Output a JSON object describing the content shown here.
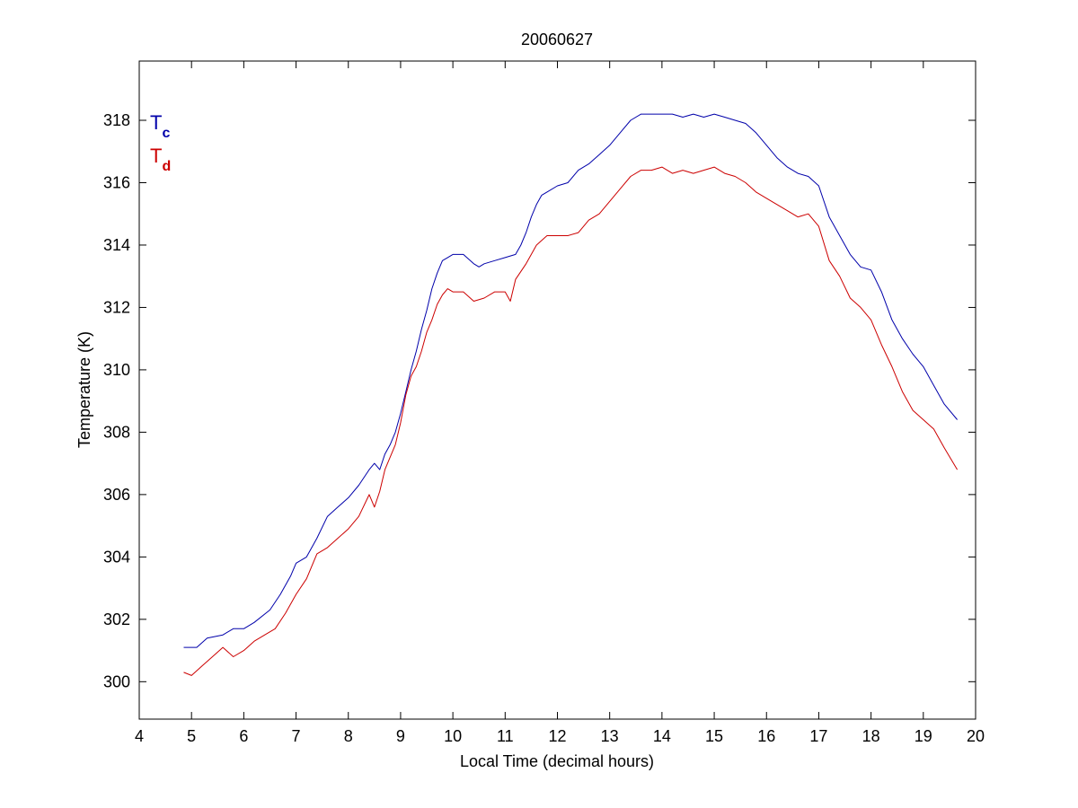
{
  "chart_data": {
    "type": "line",
    "title": "20060627",
    "xlabel": "Local Time (decimal hours)",
    "ylabel": "Temperature (K)",
    "xlim": [
      4,
      20
    ],
    "ylim": [
      298.8,
      319.9
    ],
    "xticks": [
      4,
      5,
      6,
      7,
      8,
      9,
      10,
      11,
      12,
      13,
      14,
      15,
      16,
      17,
      18,
      19,
      20
    ],
    "yticks": [
      300,
      302,
      304,
      306,
      308,
      310,
      312,
      314,
      316,
      318
    ],
    "grid": false,
    "legend": {
      "placement": "top-left"
    },
    "series": [
      {
        "name": "T",
        "subscript": "c",
        "color": "#0000aa",
        "x": [
          4.85,
          5.1,
          5.3,
          5.6,
          5.8,
          6.0,
          6.2,
          6.5,
          6.7,
          6.9,
          7.0,
          7.2,
          7.4,
          7.6,
          7.8,
          8.0,
          8.2,
          8.4,
          8.5,
          8.6,
          8.7,
          8.8,
          8.9,
          9.0,
          9.1,
          9.2,
          9.3,
          9.4,
          9.5,
          9.6,
          9.7,
          9.8,
          9.9,
          10.0,
          10.2,
          10.4,
          10.5,
          10.6,
          10.8,
          11.0,
          11.2,
          11.3,
          11.4,
          11.5,
          11.6,
          11.7,
          11.8,
          12.0,
          12.2,
          12.4,
          12.6,
          12.8,
          13.0,
          13.2,
          13.4,
          13.6,
          13.8,
          14.0,
          14.2,
          14.4,
          14.6,
          14.8,
          15.0,
          15.2,
          15.4,
          15.6,
          15.8,
          16.0,
          16.2,
          16.4,
          16.6,
          16.8,
          17.0,
          17.2,
          17.4,
          17.6,
          17.8,
          18.0,
          18.2,
          18.4,
          18.6,
          18.8,
          19.0,
          19.2,
          19.4,
          19.65
        ],
        "y": [
          301.1,
          301.1,
          301.4,
          301.5,
          301.7,
          301.7,
          301.9,
          302.3,
          302.8,
          303.4,
          303.8,
          304.0,
          304.6,
          305.3,
          305.6,
          305.9,
          306.3,
          306.8,
          307.0,
          306.8,
          307.3,
          307.6,
          308.0,
          308.6,
          309.3,
          310.0,
          310.6,
          311.3,
          311.9,
          312.6,
          313.1,
          313.5,
          313.6,
          313.7,
          313.7,
          313.4,
          313.3,
          313.4,
          313.5,
          313.6,
          313.7,
          314.0,
          314.4,
          314.9,
          315.3,
          315.6,
          315.7,
          315.9,
          316.0,
          316.4,
          316.6,
          316.9,
          317.2,
          317.6,
          318.0,
          318.2,
          318.2,
          318.2,
          318.2,
          318.1,
          318.2,
          318.1,
          318.2,
          318.1,
          318.0,
          317.9,
          317.6,
          317.2,
          316.8,
          316.5,
          316.3,
          316.2,
          315.9,
          314.9,
          314.3,
          313.7,
          313.3,
          313.2,
          312.5,
          311.6,
          311.0,
          310.5,
          310.1,
          309.5,
          308.9,
          308.4
        ]
      },
      {
        "name": "T",
        "subscript": "d",
        "color": "#cc0000",
        "x": [
          4.85,
          5.0,
          5.2,
          5.4,
          5.6,
          5.8,
          6.0,
          6.2,
          6.4,
          6.6,
          6.8,
          7.0,
          7.2,
          7.4,
          7.6,
          7.8,
          8.0,
          8.2,
          8.4,
          8.5,
          8.6,
          8.7,
          8.8,
          8.9,
          9.0,
          9.1,
          9.2,
          9.3,
          9.4,
          9.5,
          9.6,
          9.7,
          9.8,
          9.9,
          10.0,
          10.2,
          10.4,
          10.6,
          10.8,
          11.0,
          11.1,
          11.2,
          11.4,
          11.6,
          11.8,
          12.0,
          12.2,
          12.4,
          12.6,
          12.8,
          13.0,
          13.2,
          13.4,
          13.6,
          13.8,
          14.0,
          14.2,
          14.4,
          14.6,
          14.8,
          15.0,
          15.2,
          15.4,
          15.6,
          15.8,
          16.0,
          16.2,
          16.4,
          16.6,
          16.8,
          17.0,
          17.2,
          17.4,
          17.6,
          17.8,
          18.0,
          18.2,
          18.4,
          18.6,
          18.8,
          19.0,
          19.2,
          19.4,
          19.65
        ],
        "y": [
          300.3,
          300.2,
          300.5,
          300.8,
          301.1,
          300.8,
          301.0,
          301.3,
          301.5,
          301.7,
          302.2,
          302.8,
          303.3,
          304.1,
          304.3,
          304.6,
          304.9,
          305.3,
          306.0,
          305.6,
          306.1,
          306.8,
          307.2,
          307.6,
          308.3,
          309.2,
          309.8,
          310.1,
          310.6,
          311.2,
          311.6,
          312.1,
          312.4,
          312.6,
          312.5,
          312.5,
          312.2,
          312.3,
          312.5,
          312.5,
          312.2,
          312.9,
          313.4,
          314.0,
          314.3,
          314.3,
          314.3,
          314.4,
          314.8,
          315.0,
          315.4,
          315.8,
          316.2,
          316.4,
          316.4,
          316.5,
          316.3,
          316.4,
          316.3,
          316.4,
          316.5,
          316.3,
          316.2,
          316.0,
          315.7,
          315.5,
          315.3,
          315.1,
          314.9,
          315.0,
          314.6,
          313.5,
          313.0,
          312.3,
          312.0,
          311.6,
          310.8,
          310.1,
          309.3,
          308.7,
          308.4,
          308.1,
          307.5,
          306.8
        ]
      }
    ]
  }
}
